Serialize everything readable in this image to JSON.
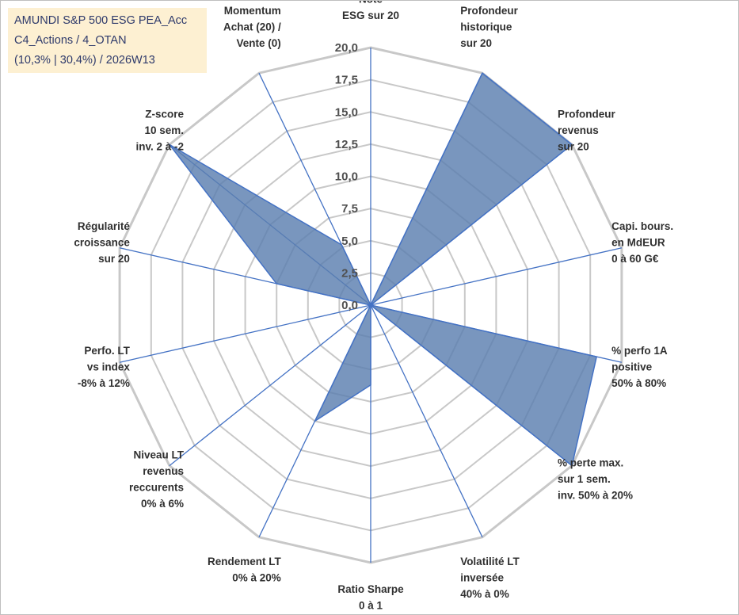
{
  "title": {
    "line1": "AMUNDI S&P 500 ESG PEA_Acc",
    "line2": "C4_Actions / 4_OTAN",
    "line3": "(10,3% | 30,4%) / 2026W13"
  },
  "chart_data": {
    "type": "radar",
    "rmin": 0,
    "rmax": 20,
    "tick_step": 2.5,
    "tick_labels": [
      "0,0",
      "2,5",
      "5,0",
      "7,5",
      "10,0",
      "12,5",
      "15,0",
      "17,5",
      "20,0"
    ],
    "colors": {
      "fill": "#5b7fb0",
      "stroke": "#4472c4",
      "grid": "#c8c8c8",
      "spoke": "#4472c4"
    },
    "axes": [
      {
        "lines": [
          "Note",
          "ESG sur 20"
        ],
        "value": 0
      },
      {
        "lines": [
          "Profondeur",
          "historique",
          "sur 20"
        ],
        "value": 20
      },
      {
        "lines": [
          "Profondeur",
          "revenus",
          "sur 20"
        ],
        "value": 20
      },
      {
        "lines": [
          "Capi. bours.",
          "en MdEUR",
          "0 à 60 G€"
        ],
        "value": 0
      },
      {
        "lines": [
          "% perfo 1A",
          "positive",
          "50% à 80%"
        ],
        "value": 18
      },
      {
        "lines": [
          "% perte max.",
          "sur 1 sem.",
          "inv. 50% à 20%"
        ],
        "value": 20
      },
      {
        "lines": [
          "Volatilité LT",
          "inversée",
          "40% à 0%"
        ],
        "value": 0
      },
      {
        "lines": [
          "Ratio Sharpe",
          "0 à 1"
        ],
        "value": 6.2
      },
      {
        "lines": [
          "Rendement LT",
          "0% à 20%"
        ],
        "value": 10
      },
      {
        "lines": [
          "Niveau LT",
          "revenus",
          "reccurents",
          "0% à 6%"
        ],
        "value": 0
      },
      {
        "lines": [
          "Perfo. LT",
          "vs index",
          "-8% à 12%"
        ],
        "value": 0
      },
      {
        "lines": [
          "Régularité",
          "croissance",
          "sur 20"
        ],
        "value": 7.5
      },
      {
        "lines": [
          "Z-score",
          "10 sem.",
          "inv. 2 à -2"
        ],
        "value": 20
      },
      {
        "lines": [
          "Momentum",
          "Achat (20) /",
          "Vente (0)"
        ],
        "value": 5.2
      }
    ]
  }
}
